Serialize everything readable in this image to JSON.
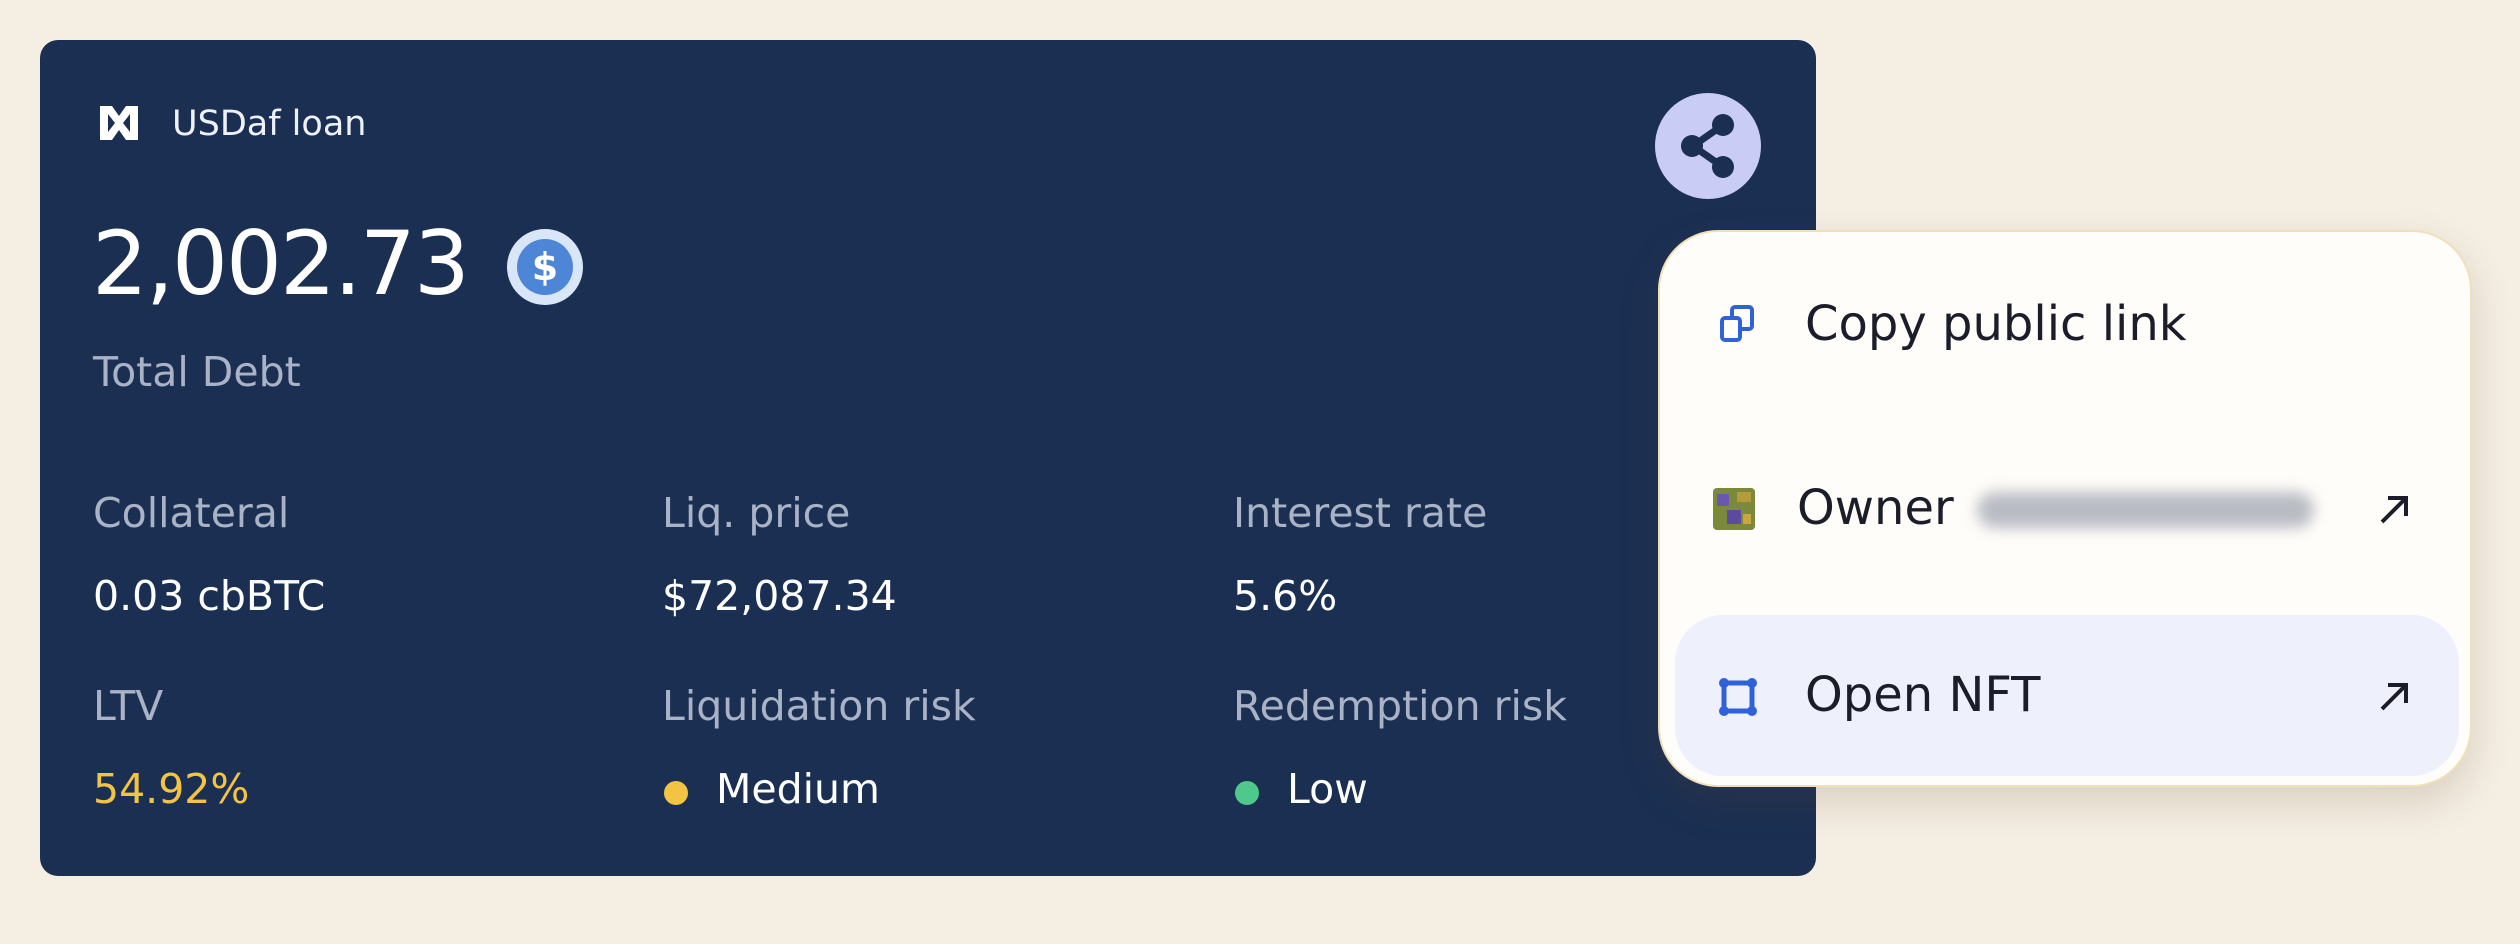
{
  "header": {
    "brand": "USDaf loan"
  },
  "debt": {
    "amount": "2,002.73",
    "label": "Total Debt"
  },
  "stats": [
    {
      "label": "Collateral",
      "value": "0.03 cbBTC"
    },
    {
      "label": "Liq. price",
      "value": "$72,087.34"
    },
    {
      "label": "Interest rate",
      "value": "5.6%"
    },
    {
      "label": "LTV",
      "value": "54.92%"
    },
    {
      "label": "Liquidation risk",
      "value": "Medium"
    },
    {
      "label": "Redemption risk",
      "value": "Low"
    }
  ],
  "menu": {
    "items": [
      {
        "label": "Copy public link"
      },
      {
        "label": "Owner"
      },
      {
        "label": "Open NFT"
      }
    ]
  }
}
